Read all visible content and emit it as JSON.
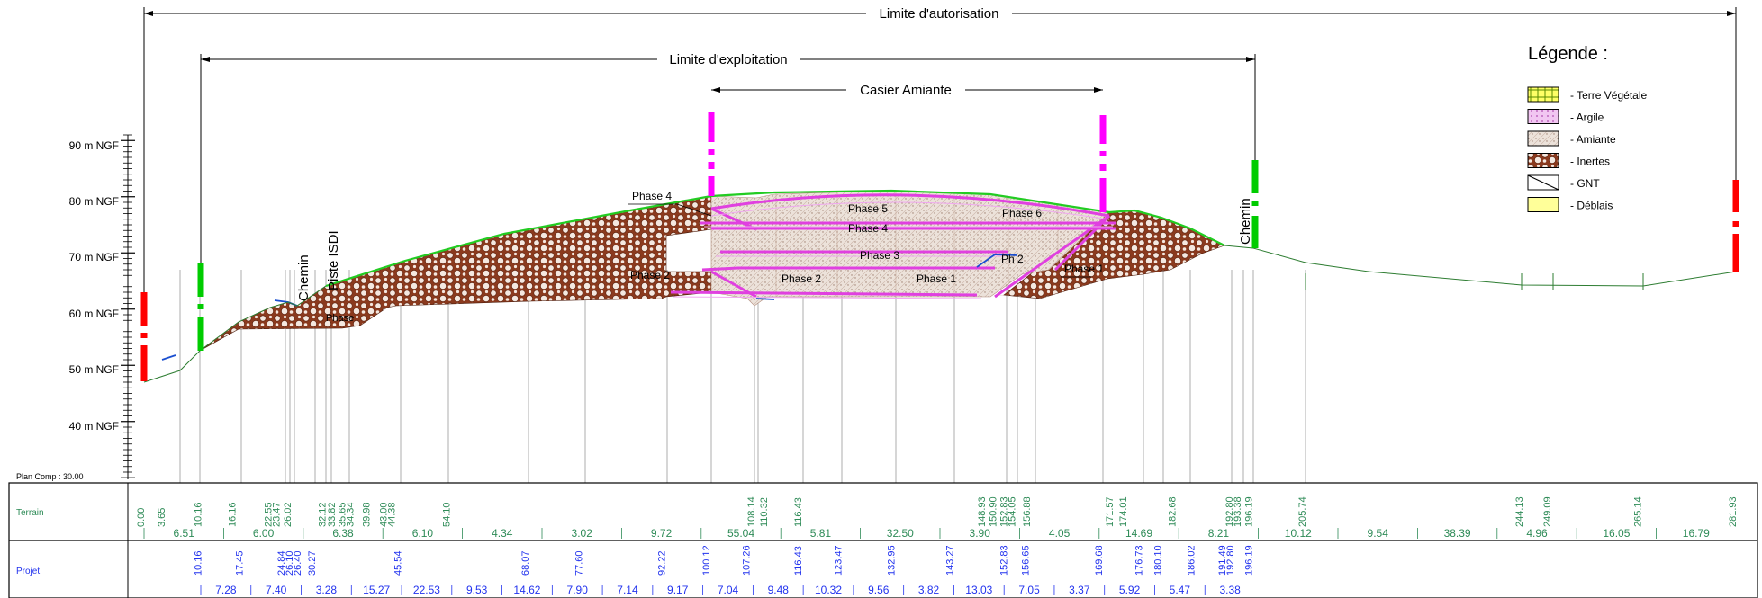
{
  "titles": {
    "autorisation": "Limite d'autorisation",
    "exploitation": "Limite d'exploitation",
    "casier": "Casier Amiante"
  },
  "axis": {
    "labels": [
      "90 m NGF",
      "80 m NGF",
      "70 m NGF",
      "60 m NGF",
      "50 m NGF",
      "40 m NGF"
    ],
    "plan_comp": "Plan Comp : 30.00"
  },
  "legend": {
    "title": "Légende :",
    "items": [
      {
        "label": "- Terre Végétale",
        "fill": "#ffff66",
        "pattern": "grid"
      },
      {
        "label": "- Argile",
        "fill": "#f0c8f0",
        "pattern": "dots"
      },
      {
        "label": "- Amiante",
        "fill": "#e8dcd4",
        "pattern": "hatch"
      },
      {
        "label": "- Inertes",
        "fill": "#8b3a1e",
        "pattern": "circles"
      },
      {
        "label": "- GNT",
        "fill": "#ffffff",
        "pattern": "diagonal"
      },
      {
        "label": "- Déblais",
        "fill": "#ffff99",
        "pattern": "none"
      }
    ]
  },
  "annotations": {
    "chemin_left": "Chemin",
    "piste": "Piste ISDI",
    "chemin_right": "Chemin",
    "phase_small": "Phase",
    "phase4_left": "Phase 4",
    "phase_left2": "Phase 2",
    "phase5": "Phase 5",
    "phase6": "Phase 6",
    "phase4_inner": "Phase 4",
    "phase3": "Phase 3",
    "phase2": "Phase 2",
    "phase1": "Phase 1",
    "ph2": "Ph 2",
    "phase1_right": "Phase 1"
  },
  "table": {
    "row1_label": "Terrain",
    "row2_label": "Projet",
    "terrain_stations": [
      "0.00",
      "3.65",
      "10.16",
      "16.16",
      "22.55",
      "23.47",
      "26.02",
      "32.12",
      "33.82",
      "35.65",
      "34.34",
      "39.98",
      "43.00",
      "44.38",
      "54.10",
      "108.14",
      "110.32",
      "116.43",
      "148.93",
      "150.90",
      "152.83",
      "154.05",
      "156.88",
      "171.57",
      "174.01",
      "182.68",
      "192.80",
      "193.38",
      "196.19",
      "205.74",
      "244.13",
      "249.09",
      "265.14",
      "281.93"
    ],
    "terrain_distances": [
      "6.51",
      "6.00",
      "6.38",
      "6.10",
      "4.34",
      "3.02",
      "9.72",
      "55.04",
      "5.81",
      "32.50",
      "3.90",
      "4.05",
      "14.69",
      "8.21",
      "10.12",
      "9.54",
      "38.39",
      "4.96",
      "16.05",
      "16.79"
    ],
    "projet_stations": [
      "10.16",
      "17.45",
      "24.84",
      "26.10",
      "26.40",
      "30.27",
      "45.54",
      "68.07",
      "77.60",
      "92.22",
      "100.12",
      "107.26",
      "116.43",
      "123.47",
      "132.95",
      "143.27",
      "152.83",
      "156.65",
      "169.68",
      "176.73",
      "180.10",
      "186.02",
      "191.49",
      "192.80",
      "196.19"
    ],
    "projet_distances": [
      "7.28",
      "7.40",
      "3.28",
      "15.27",
      "22.53",
      "9.53",
      "14.62",
      "7.90",
      "7.14",
      "9.17",
      "7.04",
      "9.48",
      "10.32",
      "9.56",
      "3.82",
      "13.03",
      "7.05",
      "3.37",
      "5.92",
      "5.47",
      "3.38"
    ]
  },
  "colors": {
    "inertes": "#8b3a1e",
    "amiante": "#e8dcd4",
    "argile": "#e040e0",
    "terrain": "#2e7d32",
    "vegetal": "#22cc22",
    "magenta_limit": "#ff00ff",
    "red_limit": "#ff0000",
    "green_limit": "#00cc00",
    "gnt": "#1a4fd0",
    "station_green": "#2e8b57",
    "station_blue": "#2233ee"
  }
}
